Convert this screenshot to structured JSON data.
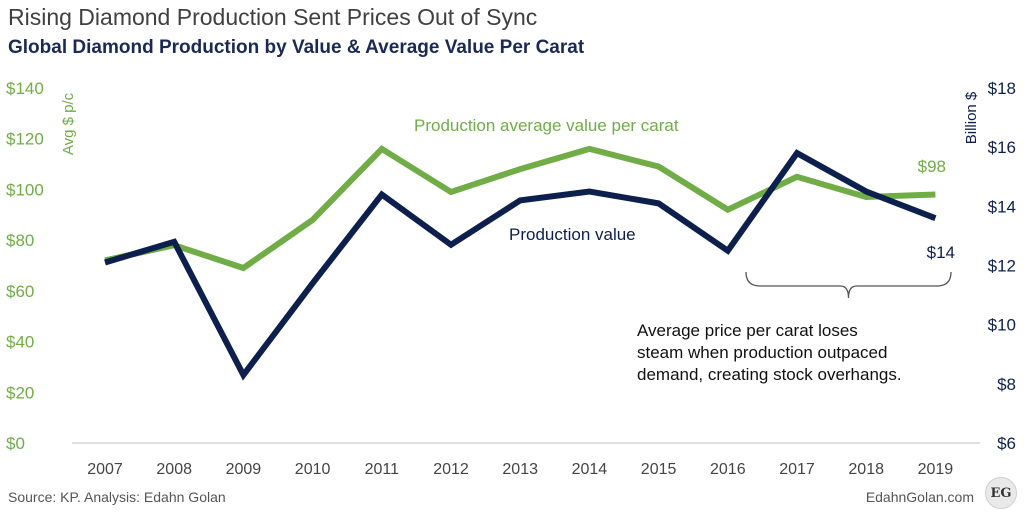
{
  "header": {
    "title": "Rising Diamond Production Sent Prices Out of Sync",
    "subtitle": "Global Diamond Production by Value & Average Value Per Carat"
  },
  "footer": {
    "source": "Source: KP. Analysis: Edahn Golan",
    "brand": "EdahnGolan.com",
    "logo_text": "EG"
  },
  "colors": {
    "green": "#70ad47",
    "navy": "#0d1f4d",
    "axis_text": "#444444"
  },
  "chart_data": {
    "type": "line",
    "x": [
      "2007",
      "2008",
      "2009",
      "2010",
      "2011",
      "2012",
      "2013",
      "2014",
      "2015",
      "2016",
      "2017",
      "2018",
      "2019"
    ],
    "left_axis": {
      "label": "Avg $ p/c",
      "ylim": [
        0,
        140
      ],
      "ticks": [
        0,
        20,
        40,
        60,
        80,
        100,
        120,
        140
      ],
      "tick_labels": [
        "$0",
        "$20",
        "$40",
        "$60",
        "$80",
        "$100",
        "$120",
        "$140"
      ]
    },
    "right_axis": {
      "label": "Billion $",
      "ylim": [
        6,
        18
      ],
      "ticks": [
        6,
        8,
        10,
        12,
        14,
        16,
        18
      ],
      "tick_labels": [
        "$6",
        "$8",
        "$10",
        "$12",
        "$14",
        "$16",
        "$18"
      ]
    },
    "series": [
      {
        "name": "Production average value per carat",
        "axis": "left",
        "color": "#70ad47",
        "values": [
          72,
          78,
          69,
          88,
          116,
          99,
          108,
          116,
          109,
          92,
          105,
          97,
          98
        ],
        "end_label": "$98"
      },
      {
        "name": "Production value",
        "axis": "right",
        "color": "#0d1f4d",
        "values": [
          12.1,
          12.8,
          8.3,
          11.4,
          14.4,
          12.7,
          14.2,
          14.5,
          14.1,
          12.5,
          15.8,
          14.5,
          13.6
        ],
        "end_label": "$14"
      }
    ],
    "annotation": {
      "lines": [
        "Average price per carat loses",
        "steam when production outpaced",
        "demand, creating stock overhangs."
      ],
      "bracket_from": "2016",
      "bracket_to": "2019"
    },
    "grid": false,
    "legend": "inline-labels"
  }
}
